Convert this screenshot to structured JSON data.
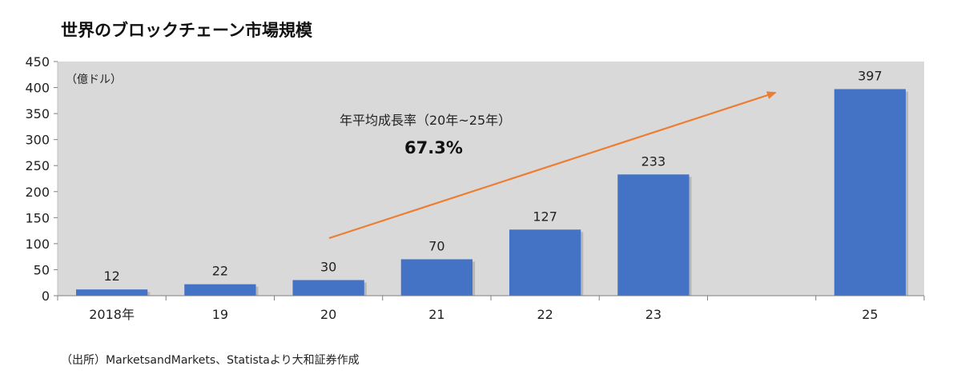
{
  "title": "世界のブロックチェーン市場規模",
  "source": "（出所）MarketsandMarkets、Statistaより大和証券作成",
  "colors": {
    "bar": "#4472C4",
    "plot_bg": "#D9D9D9",
    "arrow": "#ED7D31",
    "shadow": "#9a9a9a"
  },
  "chart_data": {
    "type": "bar",
    "title": "世界のブロックチェーン市場規模",
    "unit_label": "（億ドル）",
    "categories": [
      "2018年",
      "19",
      "20",
      "21",
      "22",
      "23",
      "",
      "25"
    ],
    "values": [
      12,
      22,
      30,
      70,
      127,
      233,
      null,
      397
    ],
    "data_labels": [
      "12",
      "22",
      "30",
      "70",
      "127",
      "233",
      "",
      "397"
    ],
    "ylim": [
      0,
      450
    ],
    "yticks": [
      0,
      50,
      100,
      150,
      200,
      250,
      300,
      350,
      400,
      450
    ],
    "grid": false,
    "annotation": {
      "label": "年平均成長率（20年~25年）",
      "value": "67.3%"
    }
  }
}
